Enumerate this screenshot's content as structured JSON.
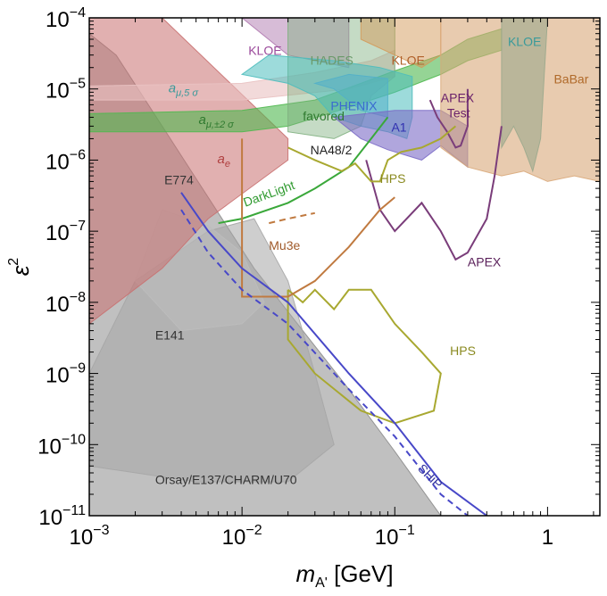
{
  "chart_data": {
    "type": "area",
    "title": "",
    "xlabel": "m_A' [GeV]",
    "ylabel": "ε²",
    "xscale": "log",
    "yscale": "log",
    "xlim": [
      0.001,
      2.2
    ],
    "ylim": [
      1e-11,
      0.0001
    ],
    "x_ticks": [
      {
        "value": 0.001,
        "base": "10",
        "exp": "−3"
      },
      {
        "value": 0.01,
        "base": "10",
        "exp": "−2"
      },
      {
        "value": 0.1,
        "base": "10",
        "exp": "−1"
      },
      {
        "value": 1,
        "base": "1",
        "exp": ""
      }
    ],
    "y_ticks": [
      {
        "value": 0.0001,
        "base": "10",
        "exp": "−4"
      },
      {
        "value": 1e-05,
        "base": "10",
        "exp": "−5"
      },
      {
        "value": 1e-06,
        "base": "10",
        "exp": "−6"
      },
      {
        "value": 1e-07,
        "base": "10",
        "exp": "−7"
      },
      {
        "value": 1e-08,
        "base": "10",
        "exp": "−8"
      },
      {
        "value": 1e-09,
        "base": "10",
        "exp": "−9"
      },
      {
        "value": 1e-10,
        "base": "10",
        "exp": "−10"
      },
      {
        "value": 1e-11,
        "base": "10",
        "exp": "−11"
      }
    ],
    "xlabel_parts": {
      "m": "m",
      "sub": "A'",
      "unit": " [GeV]"
    },
    "ylabel_parts": {
      "base": "ε",
      "exp": "2"
    },
    "regions": [
      {
        "name": "Orsay/E137/CHARM/U70",
        "color": "#8c8c8c",
        "opacity": 0.55,
        "points": [
          [
            0.001,
            1e-11
          ],
          [
            0.2,
            1e-11
          ],
          [
            0.1,
            8e-11
          ],
          [
            0.05,
            6e-10
          ],
          [
            0.025,
            4e-09
          ],
          [
            0.012,
            3e-08
          ],
          [
            0.006,
            3e-07
          ],
          [
            0.003,
            3e-06
          ],
          [
            0.0015,
            3e-05
          ],
          [
            0.001,
            6e-05
          ]
        ]
      },
      {
        "name": "E141",
        "color": "#a6a6a6",
        "opacity": 0.55,
        "points": [
          [
            0.001,
            1e-09
          ],
          [
            0.002,
            2e-08
          ],
          [
            0.006,
            1e-07
          ],
          [
            0.012,
            1.5e-07
          ],
          [
            0.02,
            2e-08
          ],
          [
            0.03,
            1e-09
          ],
          [
            0.04,
            1e-10
          ],
          [
            0.02,
            3e-11
          ],
          [
            0.005,
            3e-11
          ],
          [
            0.001,
            5e-11
          ]
        ]
      },
      {
        "name": "E774",
        "color": "#bdbdbd",
        "opacity": 0.55,
        "points": [
          [
            0.002,
            2e-08
          ],
          [
            0.003,
            2e-07
          ],
          [
            0.006,
            1.2e-07
          ],
          [
            0.01,
            5e-08
          ],
          [
            0.014,
            1e-08
          ],
          [
            0.01,
            5e-09
          ],
          [
            0.004,
            4e-09
          ]
        ]
      },
      {
        "name": "a_e",
        "color": "#c97070",
        "opacity": 0.55,
        "points": [
          [
            0.001,
            5e-09
          ],
          [
            0.001,
            0.0001
          ],
          [
            0.003,
            0.0001
          ],
          [
            0.02,
            2e-06
          ],
          [
            0.02,
            1e-06
          ],
          [
            0.006,
            1.5e-07
          ],
          [
            0.003,
            3e-08
          ]
        ]
      },
      {
        "name": "a_mu_5sigma",
        "color": "#e9c2c2",
        "opacity": 0.6,
        "points": [
          [
            0.001,
            1.1e-05
          ],
          [
            0.01,
            1.2e-05
          ],
          [
            0.03,
            1.7e-05
          ],
          [
            0.07,
            2.5e-05
          ],
          [
            0.1,
            3.5e-05
          ],
          [
            0.1,
            1.5e-05
          ],
          [
            0.05,
            1e-05
          ],
          [
            0.01,
            7e-06
          ],
          [
            0.001,
            7e-06
          ]
        ]
      },
      {
        "name": "a_mu_2sigma_favored",
        "color": "#4fb84f",
        "opacity": 0.6,
        "points": [
          [
            0.001,
            4.5e-06
          ],
          [
            0.01,
            5e-06
          ],
          [
            0.03,
            7e-06
          ],
          [
            0.06,
            1.2e-05
          ],
          [
            0.1,
            1.8e-05
          ],
          [
            0.2,
            3e-05
          ],
          [
            0.3,
            5e-05
          ],
          [
            0.5,
            7e-05
          ],
          [
            0.5,
            3.5e-05
          ],
          [
            0.3,
            2.5e-05
          ],
          [
            0.2,
            1.6e-05
          ],
          [
            0.1,
            9e-06
          ],
          [
            0.05,
            5.5e-06
          ],
          [
            0.02,
            3e-06
          ],
          [
            0.01,
            2.5e-06
          ],
          [
            0.001,
            2.5e-06
          ]
        ]
      },
      {
        "name": "KLOE_purple",
        "color": "#b07ab0",
        "opacity": 0.5,
        "points": [
          [
            0.01,
            0.0001
          ],
          [
            0.02,
            3e-05
          ],
          [
            0.05,
            2e-05
          ],
          [
            0.05,
            0.0001
          ]
        ]
      },
      {
        "name": "HADES",
        "color": "#7fb07f",
        "opacity": 0.45,
        "points": [
          [
            0.02,
            0.0001
          ],
          [
            0.02,
            2.5e-06
          ],
          [
            0.04,
            2e-06
          ],
          [
            0.06,
            3e-06
          ],
          [
            0.07,
            8e-06
          ],
          [
            0.1,
            1.5e-05
          ],
          [
            0.1,
            0.0001
          ]
        ]
      },
      {
        "name": "KLOE_orange",
        "color": "#d49a5a",
        "opacity": 0.5,
        "points": [
          [
            0.06,
            5e-05
          ],
          [
            0.1,
            3e-05
          ],
          [
            0.15,
            2e-05
          ],
          [
            0.2,
            3e-05
          ],
          [
            0.2,
            0.0001
          ],
          [
            0.06,
            0.0001
          ]
        ]
      },
      {
        "name": "PHENIX",
        "color": "#5aa0d6",
        "opacity": 0.55,
        "points": [
          [
            0.03,
            1.2e-05
          ],
          [
            0.04,
            1e-05
          ],
          [
            0.06,
            5e-06
          ],
          [
            0.09,
            4e-06
          ],
          [
            0.09,
            1.4e-05
          ],
          [
            0.05,
            1.6e-05
          ]
        ]
      },
      {
        "name": "NA48/2",
        "color": "#4dbdbd",
        "opacity": 0.55,
        "points": [
          [
            0.01,
            1.6e-05
          ],
          [
            0.02,
            1.2e-05
          ],
          [
            0.03,
            8e-06
          ],
          [
            0.04,
            4e-06
          ],
          [
            0.06,
            3e-06
          ],
          [
            0.09,
            2.5e-06
          ],
          [
            0.12,
            2e-06
          ],
          [
            0.13,
            4e-06
          ],
          [
            0.13,
            1.5e-05
          ],
          [
            0.08,
            2e-05
          ],
          [
            0.04,
            2.5e-05
          ],
          [
            0.015,
            3e-05
          ]
        ]
      },
      {
        "name": "A1",
        "color": "#7b6bc6",
        "opacity": 0.6,
        "points": [
          [
            0.04,
            4e-06
          ],
          [
            0.06,
            2e-06
          ],
          [
            0.09,
            1.4e-06
          ],
          [
            0.15,
            1e-06
          ],
          [
            0.2,
            1.6e-06
          ],
          [
            0.3,
            8e-07
          ],
          [
            0.3,
            3e-06
          ],
          [
            0.2,
            5e-06
          ],
          [
            0.1,
            5e-06
          ]
        ]
      },
      {
        "name": "KLOE_teal",
        "color": "#40a8a8",
        "opacity": 0.6,
        "points": [
          [
            0.5,
            0.0001
          ],
          [
            0.5,
            1.5e-06
          ],
          [
            0.6,
            3e-06
          ],
          [
            0.7,
            1.5e-06
          ],
          [
            0.8,
            7e-07
          ],
          [
            0.9,
            2e-06
          ],
          [
            1.0,
            0.0001
          ]
        ]
      },
      {
        "name": "BaBar",
        "color": "#d9a97a",
        "opacity": 0.6,
        "points": [
          [
            0.2,
            0.0001
          ],
          [
            0.2,
            1.5e-06
          ],
          [
            0.3,
            8e-07
          ],
          [
            0.5,
            6e-07
          ],
          [
            0.7,
            7e-07
          ],
          [
            1.0,
            5e-07
          ],
          [
            1.5,
            6e-07
          ],
          [
            2.2,
            5e-07
          ],
          [
            2.2,
            0.0001
          ]
        ]
      }
    ],
    "curves": [
      {
        "name": "APEX Test",
        "color": "#7a3d7a",
        "dashed": false,
        "points": [
          [
            0.17,
            7e-06
          ],
          [
            0.19,
            4e-06
          ],
          [
            0.22,
            2.5e-06
          ],
          [
            0.25,
            1.5e-06
          ],
          [
            0.27,
            1.6e-06
          ],
          [
            0.3,
            3e-06
          ],
          [
            0.3,
            1e-05
          ]
        ]
      },
      {
        "name": "APEX",
        "color": "#7a3d7a",
        "dashed": false,
        "points": [
          [
            0.065,
            1e-06
          ],
          [
            0.08,
            2e-07
          ],
          [
            0.1,
            1e-07
          ],
          [
            0.15,
            2.5e-07
          ],
          [
            0.2,
            1e-07
          ],
          [
            0.25,
            4e-08
          ],
          [
            0.3,
            5e-08
          ],
          [
            0.4,
            1.5e-07
          ],
          [
            0.45,
            6e-07
          ],
          [
            0.5,
            3e-06
          ]
        ]
      },
      {
        "name": "DarkLight",
        "color": "#3aa83a",
        "dashed": false,
        "points": [
          [
            0.007,
            1.3e-07
          ],
          [
            0.01,
            1.5e-07
          ],
          [
            0.02,
            2.5e-07
          ],
          [
            0.03,
            4e-07
          ],
          [
            0.05,
            8e-07
          ],
          [
            0.07,
            2e-06
          ],
          [
            0.09,
            4e-06
          ]
        ]
      },
      {
        "name": "HPS_upper",
        "color": "#a8a830",
        "dashed": false,
        "points": [
          [
            0.02,
            1.5e-06
          ],
          [
            0.03,
            1e-06
          ],
          [
            0.045,
            7e-07
          ],
          [
            0.055,
            9e-07
          ],
          [
            0.07,
            5e-07
          ],
          [
            0.08,
            5e-07
          ],
          [
            0.09,
            1e-06
          ],
          [
            0.11,
            1.3e-06
          ],
          [
            0.15,
            1.5e-06
          ],
          [
            0.2,
            2e-06
          ],
          [
            0.25,
            3e-06
          ]
        ]
      },
      {
        "name": "HPS_lower",
        "color": "#a8a830",
        "dashed": false,
        "points": [
          [
            0.02,
            1.5e-08
          ],
          [
            0.025,
            1e-08
          ],
          [
            0.03,
            1.5e-08
          ],
          [
            0.04,
            8e-09
          ],
          [
            0.05,
            1.5e-08
          ],
          [
            0.07,
            1.5e-08
          ],
          [
            0.1,
            5e-09
          ],
          [
            0.15,
            2e-09
          ],
          [
            0.2,
            1e-09
          ],
          [
            0.18,
            3e-10
          ],
          [
            0.1,
            2e-10
          ],
          [
            0.06,
            3e-10
          ],
          [
            0.03,
            1e-09
          ],
          [
            0.02,
            3e-09
          ],
          [
            0.02,
            1.5e-08
          ]
        ]
      },
      {
        "name": "Mu3e",
        "color": "#c07a40",
        "dashed": false,
        "points": [
          [
            0.01,
            2e-06
          ],
          [
            0.01,
            1.2e-08
          ],
          [
            0.02,
            1.2e-08
          ],
          [
            0.03,
            2e-08
          ],
          [
            0.05,
            6e-08
          ],
          [
            0.08,
            2e-07
          ],
          [
            0.1,
            3e-07
          ]
        ]
      },
      {
        "name": "SHiP",
        "color": "#4848c8",
        "dashed": false,
        "points": [
          [
            0.004,
            3.5e-07
          ],
          [
            0.006,
            1e-07
          ],
          [
            0.01,
            3e-08
          ],
          [
            0.02,
            1e-08
          ],
          [
            0.05,
            1e-09
          ],
          [
            0.1,
            2e-10
          ],
          [
            0.2,
            3e-11
          ],
          [
            0.4,
            1e-11
          ]
        ]
      },
      {
        "name": "SHiP_dashed",
        "color": "#4848c8",
        "dashed": true,
        "points": [
          [
            0.004,
            2e-07
          ],
          [
            0.006,
            5e-08
          ],
          [
            0.01,
            1.5e-08
          ],
          [
            0.02,
            5e-09
          ],
          [
            0.05,
            6e-10
          ],
          [
            0.1,
            1.3e-10
          ],
          [
            0.2,
            2e-11
          ],
          [
            0.3,
            1e-11
          ]
        ]
      },
      {
        "name": "DarkLight_dashed",
        "color": "#c07a40",
        "dashed": true,
        "points": [
          [
            0.015,
            1.3e-07
          ],
          [
            0.02,
            1.5e-07
          ],
          [
            0.03,
            1.8e-07
          ]
        ]
      }
    ],
    "labels": [
      {
        "text": "KLOE",
        "x": 0.011,
        "y": 3e-05,
        "color": "#9b4a9b"
      },
      {
        "text": "HADES",
        "x": 0.028,
        "y": 2.2e-05,
        "color": "#6a9a6a"
      },
      {
        "text": "KLOE",
        "x": 0.095,
        "y": 2.2e-05,
        "color": "#b0602a"
      },
      {
        "text": "KLOE",
        "x": 0.55,
        "y": 4e-05,
        "color": "#3a9a9a"
      },
      {
        "text": "BaBar",
        "x": 1.1,
        "y": 1.2e-05,
        "color": "#b06a2a"
      },
      {
        "text": "PHENIX",
        "x": 0.038,
        "y": 5e-06,
        "color": "#3a6ad0"
      },
      {
        "text": "APEX",
        "x": 0.2,
        "y": 6.5e-06,
        "color": "#6a206a"
      },
      {
        "text": "Test",
        "x": 0.22,
        "y": 4e-06,
        "color": "#6a206a"
      },
      {
        "text": "A1",
        "x": 0.095,
        "y": 2.5e-06,
        "color": "#3030b0"
      },
      {
        "text": "favored",
        "x": 0.025,
        "y": 3.6e-06,
        "color": "#2f7a2f"
      },
      {
        "text": "NA48/2",
        "x": 0.028,
        "y": 1.2e-06,
        "color": "#222222"
      },
      {
        "text": "HPS",
        "x": 0.08,
        "y": 4.8e-07,
        "color": "#8a8a20"
      },
      {
        "text": "APEX",
        "x": 0.3,
        "y": 3.2e-08,
        "color": "#5a205a"
      },
      {
        "text": "Mu3e",
        "x": 0.015,
        "y": 5.5e-08,
        "color": "#a05a2a"
      },
      {
        "text": "DarkLight",
        "x": 0.0105,
        "y": 2.2e-07,
        "color": "#2f9a2f",
        "rotate": -20
      },
      {
        "text": "E774",
        "x": 0.0031,
        "y": 4.6e-07,
        "color": "#333333"
      },
      {
        "text": "E141",
        "x": 0.0027,
        "y": 3e-09,
        "color": "#333333"
      },
      {
        "text": "HPS",
        "x": 0.23,
        "y": 1.8e-09,
        "color": "#8a8a20"
      },
      {
        "text": "SHiP",
        "x": 0.14,
        "y": 4.5e-11,
        "color": "#3030a0",
        "rotate": 45
      },
      {
        "text": "Orsay/E137/CHARM/U70",
        "x": 0.0027,
        "y": 2.8e-11,
        "color": "#333333"
      }
    ],
    "math_labels": [
      {
        "base": "a",
        "sub": "μ,5 σ",
        "x": 0.0033,
        "y": 9e-06,
        "color": "#3a9a9a"
      },
      {
        "base": "a",
        "sub": "μ,±2 σ",
        "x": 0.0052,
        "y": 3.2e-06,
        "color": "#2f7a2f"
      },
      {
        "base": "a",
        "sub": "e",
        "x": 0.0069,
        "y": 9e-07,
        "color": "#b04040"
      }
    ]
  }
}
